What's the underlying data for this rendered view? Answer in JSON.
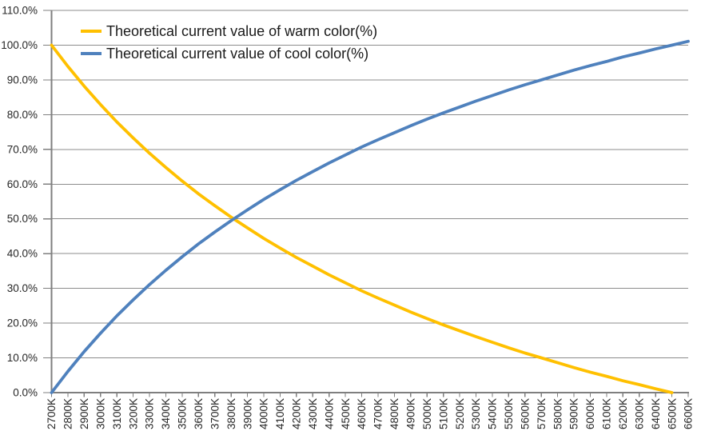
{
  "chart_data": {
    "type": "line",
    "title": "",
    "xlabel": "",
    "ylabel": "",
    "grid": true,
    "legend_position": "top-left-inside",
    "ylim": [
      0,
      110
    ],
    "y_step": 10,
    "y_tick_labels": [
      "0.0%",
      "10.0%",
      "20.0%",
      "30.0%",
      "40.0%",
      "50.0%",
      "60.0%",
      "70.0%",
      "80.0%",
      "90.0%",
      "100.0%",
      "110.0%"
    ],
    "categories": [
      "2700K",
      "2800K",
      "2900K",
      "3000K",
      "3100K",
      "3200K",
      "3300K",
      "3400K",
      "3500K",
      "3600K",
      "3700K",
      "3800K",
      "3900K",
      "4000K",
      "4100K",
      "4200K",
      "4300K",
      "4400K",
      "4500K",
      "4600K",
      "4700K",
      "4800K",
      "4900K",
      "5000K",
      "5100K",
      "5200K",
      "5300K",
      "5400K",
      "5500K",
      "5600K",
      "5700K",
      "5800K",
      "5900K",
      "6000K",
      "6100K",
      "6200K",
      "6300K",
      "6400K",
      "6500K",
      "6600K"
    ],
    "series": [
      {
        "name": "Theoretical current value of warm color(%)",
        "color": "#FFC000",
        "values": [
          100.0,
          93.9,
          88.2,
          82.9,
          77.9,
          73.3,
          68.9,
          64.8,
          60.9,
          57.2,
          53.8,
          50.5,
          47.4,
          44.4,
          41.6,
          38.9,
          36.4,
          33.9,
          31.6,
          29.3,
          27.2,
          25.2,
          23.2,
          21.3,
          19.5,
          17.8,
          16.1,
          14.5,
          12.9,
          11.4,
          10.0,
          8.6,
          7.2,
          5.9,
          4.7,
          3.4,
          2.3,
          1.1,
          0.0,
          null
        ]
      },
      {
        "name": "Theoretical current value of cool color(%)",
        "color": "#4F81BD",
        "values": [
          0.0,
          6.1,
          11.8,
          17.1,
          22.1,
          26.7,
          31.1,
          35.2,
          39.1,
          42.8,
          46.2,
          49.5,
          52.6,
          55.6,
          58.4,
          61.1,
          63.6,
          66.1,
          68.4,
          70.7,
          72.8,
          74.8,
          76.8,
          78.7,
          80.5,
          82.2,
          83.9,
          85.5,
          87.1,
          88.6,
          90.0,
          91.4,
          92.8,
          94.1,
          95.3,
          96.6,
          97.7,
          98.9,
          100.0,
          101.1
        ]
      }
    ]
  },
  "colors": {
    "warm_series": "#FFC000",
    "cool_series": "#4F81BD",
    "gridline": "#8C8C8C",
    "axis": "#7F7F7F",
    "tick_label": "#262626",
    "legend_text": "#1A1A1A",
    "background": "#FFFFFF"
  }
}
